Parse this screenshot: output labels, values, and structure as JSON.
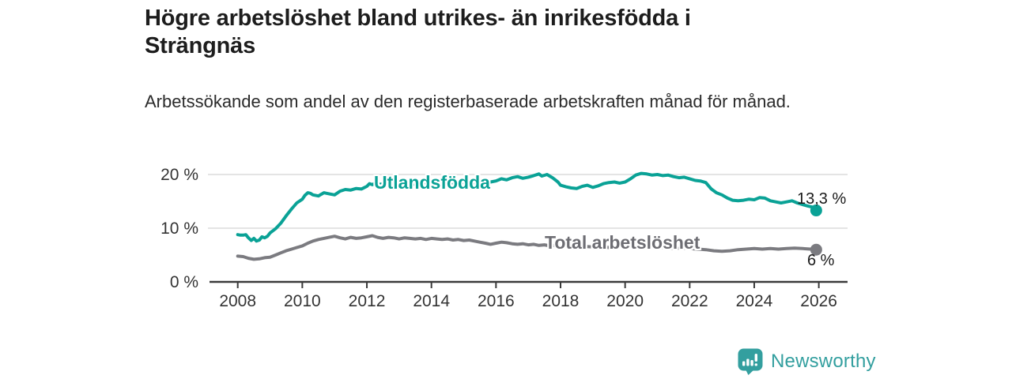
{
  "header": {
    "title": "Högre arbetslöshet bland utrikes- än inrikesfödda i Strängnäs",
    "subtitle": "Arbetssökande som andel av den registerbaserade arbetskraften månad för månad."
  },
  "footer": {
    "brand": "Newsworthy",
    "logo_icon": "bar-chart-speech-bubble-icon",
    "brand_color": "#339f9f"
  },
  "colors": {
    "accent_teal": "#0aa296",
    "line_gray": "#7b7b80",
    "label_gray": "#6d6d73",
    "grid": "#dcdcdc",
    "axis": "#3a3a3a",
    "tick_text": "#333333",
    "annotation_text": "#1a1a1a"
  },
  "chart_data": {
    "type": "line",
    "title": "Högre arbetslöshet bland utrikes- än inrikesfödda i Strängnäs",
    "subtitle": "Arbetssökande som andel av den registerbaserade arbetskraften månad för månad.",
    "xlabel": "",
    "ylabel": "",
    "unit": "%",
    "xlim": [
      2007.1,
      2026.9
    ],
    "ylim": [
      0,
      22
    ],
    "grid": "horizontal",
    "legend_position": "inline-on-line",
    "yticks": [
      {
        "value": 0,
        "label": "0 %"
      },
      {
        "value": 10,
        "label": "10 %"
      },
      {
        "value": 20,
        "label": "20 %"
      }
    ],
    "xticks": [
      {
        "value": 2008,
        "label": "2008"
      },
      {
        "value": 2010,
        "label": "2010"
      },
      {
        "value": 2012,
        "label": "2012"
      },
      {
        "value": 2014,
        "label": "2014"
      },
      {
        "value": 2016,
        "label": "2016"
      },
      {
        "value": 2018,
        "label": "2018"
      },
      {
        "value": 2020,
        "label": "2020"
      },
      {
        "value": 2022,
        "label": "2022"
      },
      {
        "value": 2024,
        "label": "2024"
      },
      {
        "value": 2026,
        "label": "2026"
      }
    ],
    "series": [
      {
        "name": "Utlandsfödda",
        "color": "#0aa296",
        "line_width": 4,
        "end_label": "13,3 %",
        "end_value": 13.3,
        "end_marker": true,
        "points": [
          [
            2008.0,
            8.8
          ],
          [
            2008.08,
            8.7
          ],
          [
            2008.17,
            8.7
          ],
          [
            2008.25,
            8.8
          ],
          [
            2008.33,
            8.2
          ],
          [
            2008.42,
            7.7
          ],
          [
            2008.5,
            8.1
          ],
          [
            2008.58,
            7.6
          ],
          [
            2008.67,
            7.8
          ],
          [
            2008.75,
            8.4
          ],
          [
            2008.83,
            8.2
          ],
          [
            2008.92,
            8.5
          ],
          [
            2009.0,
            9.1
          ],
          [
            2009.17,
            9.9
          ],
          [
            2009.33,
            10.9
          ],
          [
            2009.5,
            12.3
          ],
          [
            2009.67,
            13.6
          ],
          [
            2009.83,
            14.7
          ],
          [
            2010.0,
            15.4
          ],
          [
            2010.08,
            16.1
          ],
          [
            2010.17,
            16.6
          ],
          [
            2010.25,
            16.5
          ],
          [
            2010.33,
            16.2
          ],
          [
            2010.5,
            16.0
          ],
          [
            2010.58,
            16.3
          ],
          [
            2010.67,
            16.6
          ],
          [
            2010.75,
            16.5
          ],
          [
            2010.92,
            16.3
          ],
          [
            2011.0,
            16.2
          ],
          [
            2011.17,
            16.9
          ],
          [
            2011.33,
            17.2
          ],
          [
            2011.5,
            17.1
          ],
          [
            2011.67,
            17.4
          ],
          [
            2011.83,
            17.3
          ],
          [
            2012.0,
            17.8
          ],
          [
            2012.08,
            18.3
          ],
          [
            2012.17,
            18.1
          ],
          [
            2012.25,
            18.4
          ],
          [
            2012.33,
            17.9
          ],
          [
            2012.42,
            18.2
          ],
          [
            2012.58,
            17.9
          ],
          [
            2012.75,
            18.0
          ],
          [
            2012.92,
            18.2
          ],
          [
            2013.0,
            18.1
          ],
          [
            2013.25,
            18.3
          ],
          [
            2013.5,
            18.2
          ],
          [
            2013.75,
            18.4
          ],
          [
            2014.0,
            18.3
          ],
          [
            2014.25,
            18.5
          ],
          [
            2014.5,
            18.4
          ],
          [
            2014.75,
            18.3
          ],
          [
            2015.0,
            18.5
          ],
          [
            2015.25,
            18.2
          ],
          [
            2015.5,
            18.0
          ],
          [
            2015.67,
            18.4
          ],
          [
            2015.83,
            18.6
          ],
          [
            2016.0,
            18.8
          ],
          [
            2016.17,
            19.2
          ],
          [
            2016.33,
            19.0
          ],
          [
            2016.5,
            19.4
          ],
          [
            2016.67,
            19.6
          ],
          [
            2016.83,
            19.3
          ],
          [
            2017.0,
            19.5
          ],
          [
            2017.17,
            19.8
          ],
          [
            2017.33,
            20.1
          ],
          [
            2017.42,
            19.7
          ],
          [
            2017.58,
            20.0
          ],
          [
            2017.75,
            19.4
          ],
          [
            2017.92,
            18.6
          ],
          [
            2018.0,
            18.0
          ],
          [
            2018.17,
            17.7
          ],
          [
            2018.33,
            17.5
          ],
          [
            2018.5,
            17.4
          ],
          [
            2018.67,
            17.8
          ],
          [
            2018.83,
            18.0
          ],
          [
            2019.0,
            17.6
          ],
          [
            2019.17,
            17.9
          ],
          [
            2019.33,
            18.3
          ],
          [
            2019.5,
            18.5
          ],
          [
            2019.67,
            18.6
          ],
          [
            2019.83,
            18.4
          ],
          [
            2020.0,
            18.6
          ],
          [
            2020.17,
            19.2
          ],
          [
            2020.33,
            19.9
          ],
          [
            2020.5,
            20.2
          ],
          [
            2020.67,
            20.1
          ],
          [
            2020.83,
            19.9
          ],
          [
            2021.0,
            20.0
          ],
          [
            2021.17,
            19.8
          ],
          [
            2021.33,
            19.9
          ],
          [
            2021.5,
            19.6
          ],
          [
            2021.67,
            19.4
          ],
          [
            2021.83,
            19.5
          ],
          [
            2022.0,
            19.2
          ],
          [
            2022.17,
            18.9
          ],
          [
            2022.33,
            18.8
          ],
          [
            2022.5,
            18.5
          ],
          [
            2022.67,
            17.3
          ],
          [
            2022.83,
            16.6
          ],
          [
            2023.0,
            16.2
          ],
          [
            2023.17,
            15.6
          ],
          [
            2023.33,
            15.2
          ],
          [
            2023.5,
            15.1
          ],
          [
            2023.67,
            15.2
          ],
          [
            2023.83,
            15.4
          ],
          [
            2024.0,
            15.3
          ],
          [
            2024.17,
            15.7
          ],
          [
            2024.33,
            15.6
          ],
          [
            2024.5,
            15.1
          ],
          [
            2024.67,
            14.9
          ],
          [
            2024.83,
            14.7
          ],
          [
            2025.0,
            14.9
          ],
          [
            2025.17,
            15.1
          ],
          [
            2025.33,
            14.7
          ],
          [
            2025.5,
            14.4
          ],
          [
            2025.67,
            14.1
          ],
          [
            2025.83,
            13.9
          ],
          [
            2025.92,
            13.3
          ]
        ]
      },
      {
        "name": "Total arbetslöshet",
        "color": "#7b7b80",
        "line_width": 4,
        "end_label": "6 %",
        "end_value": 6.0,
        "end_marker": true,
        "points": [
          [
            2008.0,
            4.8
          ],
          [
            2008.17,
            4.7
          ],
          [
            2008.33,
            4.4
          ],
          [
            2008.5,
            4.2
          ],
          [
            2008.67,
            4.3
          ],
          [
            2008.83,
            4.5
          ],
          [
            2009.0,
            4.6
          ],
          [
            2009.17,
            5.0
          ],
          [
            2009.33,
            5.4
          ],
          [
            2009.5,
            5.8
          ],
          [
            2009.67,
            6.1
          ],
          [
            2009.83,
            6.4
          ],
          [
            2010.0,
            6.7
          ],
          [
            2010.17,
            7.2
          ],
          [
            2010.33,
            7.6
          ],
          [
            2010.5,
            7.9
          ],
          [
            2010.67,
            8.1
          ],
          [
            2010.83,
            8.3
          ],
          [
            2011.0,
            8.5
          ],
          [
            2011.17,
            8.2
          ],
          [
            2011.33,
            8.0
          ],
          [
            2011.5,
            8.3
          ],
          [
            2011.67,
            8.1
          ],
          [
            2011.83,
            8.2
          ],
          [
            2012.0,
            8.4
          ],
          [
            2012.17,
            8.6
          ],
          [
            2012.33,
            8.3
          ],
          [
            2012.5,
            8.1
          ],
          [
            2012.67,
            8.3
          ],
          [
            2012.83,
            8.2
          ],
          [
            2013.0,
            8.0
          ],
          [
            2013.17,
            8.2
          ],
          [
            2013.33,
            8.1
          ],
          [
            2013.5,
            8.0
          ],
          [
            2013.67,
            8.1
          ],
          [
            2013.83,
            7.9
          ],
          [
            2014.0,
            8.1
          ],
          [
            2014.17,
            8.0
          ],
          [
            2014.33,
            7.9
          ],
          [
            2014.5,
            8.0
          ],
          [
            2014.67,
            7.8
          ],
          [
            2014.83,
            7.9
          ],
          [
            2015.0,
            7.7
          ],
          [
            2015.17,
            7.8
          ],
          [
            2015.33,
            7.6
          ],
          [
            2015.5,
            7.4
          ],
          [
            2015.67,
            7.2
          ],
          [
            2015.83,
            7.0
          ],
          [
            2016.0,
            7.2
          ],
          [
            2016.17,
            7.4
          ],
          [
            2016.33,
            7.3
          ],
          [
            2016.5,
            7.1
          ],
          [
            2016.67,
            7.0
          ],
          [
            2016.83,
            7.1
          ],
          [
            2017.0,
            6.9
          ],
          [
            2017.17,
            7.0
          ],
          [
            2017.33,
            6.8
          ],
          [
            2017.5,
            6.9
          ],
          [
            2017.67,
            6.7
          ],
          [
            2017.83,
            6.8
          ],
          [
            2018.0,
            6.6
          ],
          [
            2018.25,
            6.7
          ],
          [
            2018.5,
            6.5
          ],
          [
            2018.75,
            6.6
          ],
          [
            2019.0,
            6.5
          ],
          [
            2019.25,
            6.6
          ],
          [
            2019.5,
            6.4
          ],
          [
            2019.75,
            6.5
          ],
          [
            2020.0,
            6.6
          ],
          [
            2020.25,
            6.7
          ],
          [
            2020.5,
            6.5
          ],
          [
            2020.75,
            6.4
          ],
          [
            2021.0,
            6.5
          ],
          [
            2021.25,
            6.3
          ],
          [
            2021.5,
            6.2
          ],
          [
            2021.75,
            6.3
          ],
          [
            2022.0,
            6.2
          ],
          [
            2022.25,
            6.1
          ],
          [
            2022.5,
            6.0
          ],
          [
            2022.75,
            5.8
          ],
          [
            2023.0,
            5.7
          ],
          [
            2023.25,
            5.8
          ],
          [
            2023.5,
            6.0
          ],
          [
            2023.75,
            6.1
          ],
          [
            2024.0,
            6.2
          ],
          [
            2024.25,
            6.1
          ],
          [
            2024.5,
            6.2
          ],
          [
            2024.75,
            6.1
          ],
          [
            2025.0,
            6.2
          ],
          [
            2025.25,
            6.3
          ],
          [
            2025.5,
            6.2
          ],
          [
            2025.75,
            6.1
          ],
          [
            2025.92,
            6.0
          ]
        ]
      }
    ]
  }
}
